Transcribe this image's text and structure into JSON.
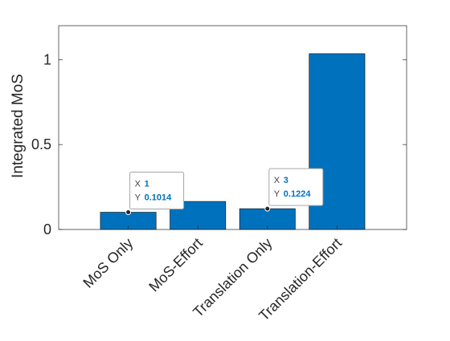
{
  "chart_data": {
    "type": "bar",
    "categories": [
      "MoS Only",
      "MoS-Effort",
      "Translation Only",
      "Translation-Effort"
    ],
    "x": [
      1,
      2,
      3,
      4
    ],
    "values": [
      0.1014,
      0.165,
      0.1224,
      1.035
    ],
    "xlim": [
      0,
      5
    ],
    "ylim": [
      0,
      1.2
    ],
    "yticks": [
      0,
      0.5,
      1
    ],
    "ytick_labels": [
      "0",
      "0.5",
      "1"
    ],
    "title": "",
    "xlabel": "",
    "ylabel": "Integrated MoS",
    "bar_color": "#0072BD",
    "grid": false,
    "datatips": [
      {
        "x": 1,
        "y": 0.1014,
        "x_label": "X",
        "x_value": "1",
        "y_label": "Y",
        "y_value": "0.1014"
      },
      {
        "x": 3,
        "y": 0.1224,
        "x_label": "X",
        "x_value": "3",
        "y_label": "Y",
        "y_value": "0.1224"
      }
    ],
    "datatip_value_color": "#0072BD"
  }
}
